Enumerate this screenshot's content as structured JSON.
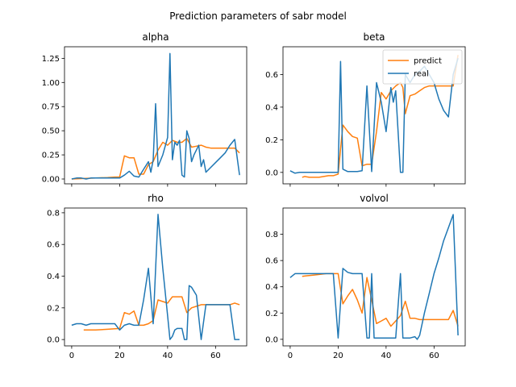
{
  "figure": {
    "title": "Prediction parameters of sabr model"
  },
  "colors": {
    "predict": "#ff7f0e",
    "real": "#1f77b4"
  },
  "chart_data": [
    {
      "type": "line",
      "title": "alpha",
      "xlim": [
        -3,
        73
      ],
      "ylim": [
        -0.05,
        1.37
      ],
      "yticks": [
        0.0,
        0.25,
        0.5,
        0.75,
        1.0,
        1.25
      ],
      "ytick_labels": [
        "0.00",
        "0.25",
        "0.50",
        "0.75",
        "1.00",
        "1.25"
      ],
      "xticks": [
        0,
        20,
        40,
        60
      ],
      "xtick_labels": [],
      "series": [
        {
          "name": "predict",
          "x": [
            0,
            5,
            10,
            15,
            18,
            20,
            22,
            24,
            26,
            28,
            30,
            32,
            34,
            36,
            38,
            40,
            42,
            44,
            46,
            48,
            50,
            52,
            54,
            56,
            58,
            60,
            62,
            64,
            66,
            68,
            70
          ],
          "y": [
            0,
            0.005,
            0.01,
            0.015,
            0.02,
            0.02,
            0.24,
            0.22,
            0.22,
            0.05,
            0.05,
            0.15,
            0.18,
            0.3,
            0.38,
            0.35,
            0.4,
            0.38,
            0.38,
            0.42,
            0.33,
            0.34,
            0.35,
            0.33,
            0.32,
            0.32,
            0.32,
            0.32,
            0.32,
            0.32,
            0.27
          ]
        },
        {
          "name": "real",
          "x": [
            0,
            2,
            4,
            6,
            8,
            10,
            12,
            14,
            16,
            18,
            20,
            22,
            24,
            26,
            28,
            30,
            32,
            33,
            34,
            35,
            36,
            38,
            40,
            41,
            42,
            43,
            44,
            45,
            46,
            47,
            48,
            49,
            50,
            51,
            52,
            53,
            54,
            55,
            56,
            58,
            60,
            62,
            64,
            66,
            68,
            70
          ],
          "y": [
            0,
            0.01,
            0.01,
            0,
            0.01,
            0.01,
            0.01,
            0.01,
            0.01,
            0.01,
            0.01,
            0.04,
            0.08,
            0.03,
            0.02,
            0.1,
            0.18,
            0.07,
            0.2,
            0.78,
            0.13,
            0.25,
            0.43,
            1.3,
            0.2,
            0.38,
            0.35,
            0.4,
            0.04,
            0.02,
            0.5,
            0.42,
            0.18,
            0.25,
            0.3,
            0.35,
            0.13,
            0.2,
            0.07,
            0.12,
            0.17,
            0.22,
            0.27,
            0.35,
            0.41,
            0.04
          ]
        }
      ]
    },
    {
      "type": "line",
      "title": "beta",
      "xlim": [
        -3,
        73
      ],
      "ylim": [
        -0.07,
        0.77
      ],
      "yticks": [
        0.0,
        0.2,
        0.4,
        0.6
      ],
      "ytick_labels": [
        "0.0",
        "0.2",
        "0.4",
        "0.6"
      ],
      "xticks": [
        0,
        20,
        40,
        60
      ],
      "xtick_labels": [],
      "legend": {
        "placement": "upper-right",
        "entries": [
          "predict",
          "real"
        ]
      },
      "series": [
        {
          "name": "predict",
          "x": [
            5,
            6,
            8,
            10,
            12,
            14,
            16,
            18,
            20,
            22,
            24,
            26,
            28,
            30,
            32,
            34,
            36,
            38,
            40,
            42,
            44,
            46,
            47,
            48,
            50,
            52,
            54,
            56,
            58,
            60,
            62,
            64,
            66,
            68,
            70
          ],
          "y": [
            -0.03,
            -0.025,
            -0.03,
            -0.03,
            -0.03,
            -0.025,
            -0.02,
            -0.02,
            -0.01,
            0.29,
            0.25,
            0.22,
            0.21,
            0.04,
            0.05,
            0.05,
            0.25,
            0.49,
            0.45,
            0.5,
            0.53,
            0.55,
            0.52,
            0.36,
            0.47,
            0.48,
            0.5,
            0.52,
            0.53,
            0.53,
            0.53,
            0.53,
            0.53,
            0.53,
            0.72
          ]
        },
        {
          "name": "real",
          "x": [
            0,
            2,
            4,
            6,
            8,
            10,
            12,
            14,
            16,
            18,
            20,
            21,
            22,
            24,
            26,
            28,
            30,
            32,
            34,
            36,
            38,
            40,
            42,
            43,
            44,
            46,
            47,
            48,
            50,
            52,
            54,
            56,
            58,
            60,
            62,
            64,
            66,
            68,
            70
          ],
          "y": [
            0.01,
            -0.005,
            0,
            0,
            0,
            0,
            0,
            0,
            0,
            0,
            0,
            0.68,
            0.02,
            0.005,
            0.005,
            0.005,
            0.01,
            0.53,
            0.005,
            0.55,
            0.43,
            0.25,
            0.52,
            0.43,
            0.5,
            0.0,
            0.0,
            0.6,
            0.55,
            0.6,
            0.62,
            0.65,
            0.6,
            0.55,
            0.45,
            0.38,
            0.34,
            0.6,
            0.7
          ]
        }
      ]
    },
    {
      "type": "line",
      "title": "rho",
      "xlim": [
        -3,
        73
      ],
      "ylim": [
        -0.04,
        0.83
      ],
      "yticks": [
        0.0,
        0.2,
        0.4,
        0.6,
        0.8
      ],
      "ytick_labels": [
        "0.0",
        "0.2",
        "0.4",
        "0.6",
        "0.8"
      ],
      "xticks": [
        0,
        20,
        40,
        60
      ],
      "xtick_labels": [
        "0",
        "20",
        "40",
        "60"
      ],
      "series": [
        {
          "name": "predict",
          "x": [
            5,
            10,
            15,
            20,
            22,
            24,
            26,
            28,
            30,
            32,
            34,
            36,
            38,
            40,
            42,
            44,
            46,
            48,
            50,
            52,
            54,
            56,
            58,
            60,
            62,
            64,
            66,
            68,
            70
          ],
          "y": [
            0.06,
            0.06,
            0.065,
            0.07,
            0.17,
            0.16,
            0.18,
            0.09,
            0.09,
            0.1,
            0.12,
            0.25,
            0.24,
            0.23,
            0.27,
            0.27,
            0.27,
            0.17,
            0.2,
            0.21,
            0.22,
            0.22,
            0.22,
            0.22,
            0.22,
            0.22,
            0.22,
            0.23,
            0.22
          ]
        },
        {
          "name": "real",
          "x": [
            0,
            2,
            4,
            6,
            8,
            10,
            12,
            14,
            16,
            18,
            20,
            22,
            24,
            26,
            28,
            30,
            32,
            34,
            36,
            38,
            40,
            41,
            42,
            43,
            44,
            46,
            47,
            48,
            49,
            50,
            52,
            54,
            56,
            58,
            60,
            62,
            64,
            66,
            68,
            70
          ],
          "y": [
            0.09,
            0.1,
            0.1,
            0.09,
            0.1,
            0.1,
            0.1,
            0.1,
            0.1,
            0.1,
            0.06,
            0.09,
            0.1,
            0.09,
            0.09,
            0.25,
            0.45,
            0.1,
            0.79,
            0.45,
            0.15,
            0.0,
            0.02,
            0.06,
            0.07,
            0.07,
            0.0,
            0.0,
            0.34,
            0.33,
            0.28,
            0.0,
            0.22,
            0.22,
            0.22,
            0.22,
            0.22,
            0.22,
            0.0,
            0.0
          ]
        }
      ]
    },
    {
      "type": "line",
      "title": "volvol",
      "xlim": [
        -3,
        73
      ],
      "ylim": [
        -0.05,
        1.0
      ],
      "yticks": [
        0.0,
        0.2,
        0.4,
        0.6,
        0.8
      ],
      "ytick_labels": [
        "0.0",
        "0.2",
        "0.4",
        "0.6",
        "0.8"
      ],
      "xticks": [
        0,
        20,
        40,
        60
      ],
      "xtick_labels": [
        "0",
        "20",
        "40",
        "60"
      ],
      "series": [
        {
          "name": "predict",
          "x": [
            5,
            10,
            15,
            20,
            22,
            24,
            26,
            28,
            30,
            32,
            34,
            36,
            38,
            40,
            42,
            44,
            46,
            48,
            50,
            52,
            54,
            56,
            58,
            60,
            62,
            64,
            66,
            68,
            70
          ],
          "y": [
            0.48,
            0.49,
            0.5,
            0.5,
            0.27,
            0.33,
            0.38,
            0.3,
            0.2,
            0.47,
            0.3,
            0.12,
            0.14,
            0.16,
            0.1,
            0.14,
            0.18,
            0.29,
            0.16,
            0.16,
            0.15,
            0.15,
            0.15,
            0.15,
            0.15,
            0.15,
            0.15,
            0.22,
            0.1
          ]
        },
        {
          "name": "real",
          "x": [
            0,
            2,
            4,
            6,
            8,
            10,
            12,
            14,
            16,
            18,
            20,
            22,
            24,
            26,
            28,
            30,
            32,
            33,
            34,
            35,
            36,
            38,
            40,
            42,
            44,
            46,
            47,
            48,
            50,
            52,
            53,
            54,
            56,
            58,
            60,
            62,
            64,
            66,
            68,
            70
          ],
          "y": [
            0.47,
            0.5,
            0.5,
            0.5,
            0.5,
            0.5,
            0.5,
            0.5,
            0.5,
            0.5,
            0.01,
            0.54,
            0.51,
            0.5,
            0.5,
            0.5,
            0.01,
            0.01,
            0.5,
            0.01,
            0.01,
            0.01,
            0.01,
            0.01,
            0.01,
            0.5,
            0.01,
            0.01,
            0.01,
            0.02,
            0.0,
            0.03,
            0.2,
            0.35,
            0.5,
            0.62,
            0.75,
            0.85,
            0.95,
            0.03
          ]
        }
      ]
    }
  ]
}
